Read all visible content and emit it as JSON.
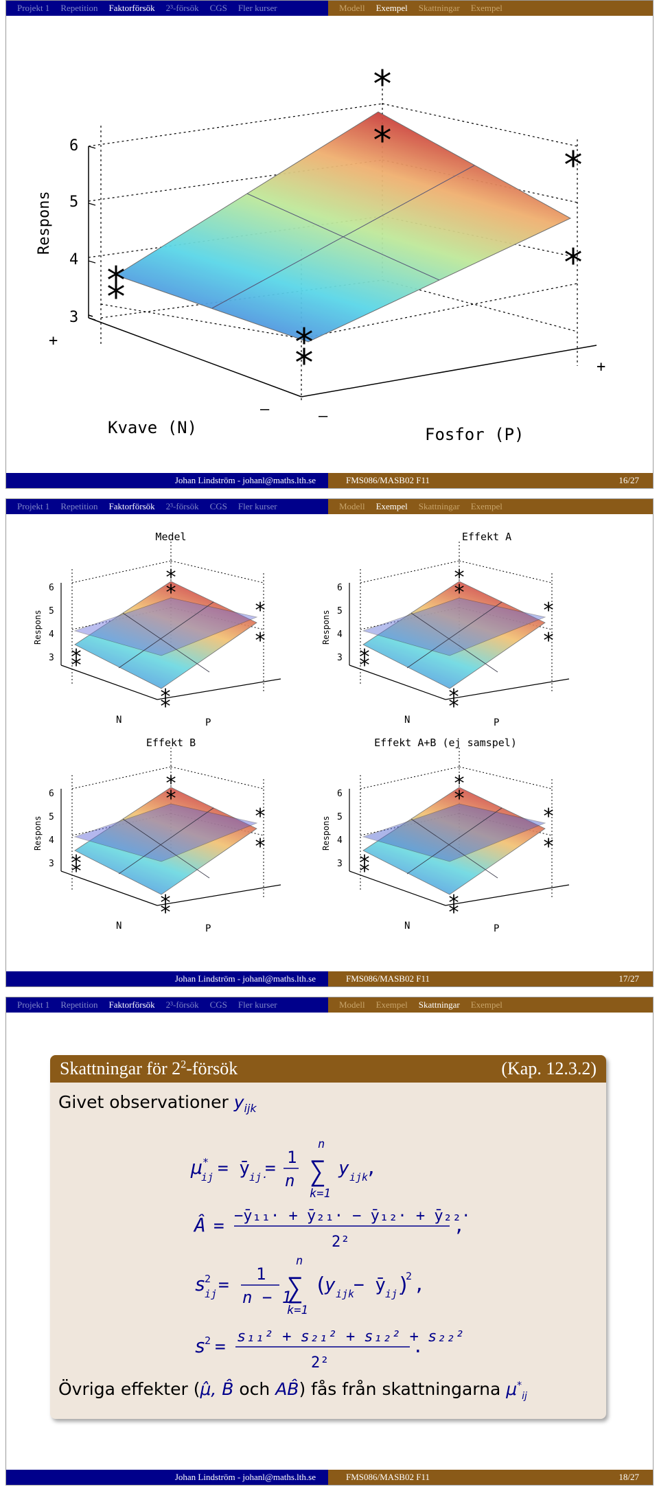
{
  "nav": {
    "left": [
      "Projekt 1",
      "Repetition",
      "Faktorförsök",
      "2³-försök",
      "CGS",
      "Fler kurser"
    ],
    "right": [
      "Modell",
      "Exempel",
      "Skattningar",
      "Exempel"
    ]
  },
  "footer": {
    "author": "Johan Lindström - johanl@maths.lth.se",
    "course": "FMS086/MASB02 F11"
  },
  "slides": [
    {
      "page": "16/27",
      "active_left": 2,
      "active_right": 1,
      "plot": {
        "ylabel": "Respons",
        "xlabel": "Kvave (N)",
        "zlabel": "Fosfor (P)",
        "yticks": [
          "3",
          "4",
          "5",
          "6"
        ],
        "plus": "+",
        "minus": "–"
      }
    },
    {
      "page": "17/27",
      "active_left": 2,
      "active_right": 1,
      "titles": [
        "Medel",
        "Effekt A",
        "Effekt B",
        "Effekt A+B (ej samspel)"
      ],
      "ylabel": "Respons",
      "nlabel": "N",
      "plabel": "P",
      "yticks": [
        "3",
        "4",
        "5",
        "6"
      ]
    },
    {
      "page": "18/27",
      "active_left": 2,
      "active_right": 2,
      "block_title": "Skattningar för 2",
      "block_title_sup": "2",
      "block_title_tail": "-försök",
      "block_ref": "(Kap. 12.3.2)",
      "given": "Givet observationer",
      "given_var": "y",
      "given_sub": "ijk",
      "bottom_text": "Övriga effekter (",
      "bottom_text2": " och ",
      "bottom_text3": ") fås från skattningarna "
    }
  ]
}
